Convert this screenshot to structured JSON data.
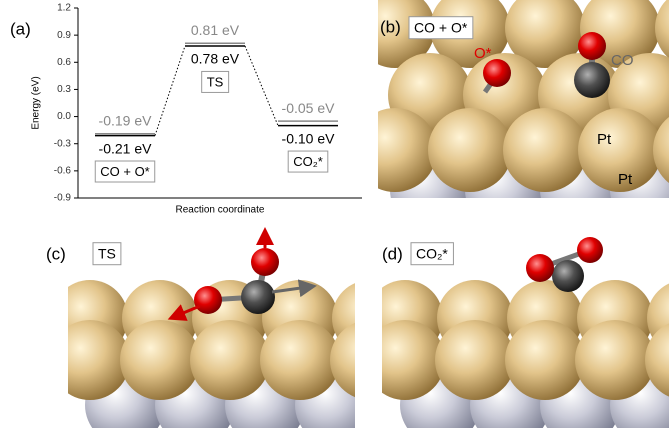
{
  "chart_data": {
    "type": "levels",
    "label": "(a)",
    "ylabel": "Energy (eV)",
    "xlabel": "Reaction coordinate",
    "categories": [
      "CO + O*",
      "TS",
      "CO₂*"
    ],
    "series": [
      {
        "color": "#888888",
        "values": [
          -0.19,
          0.81,
          -0.05
        ],
        "value_labels": [
          "-0.19 eV",
          "0.81 eV",
          "-0.05 eV"
        ]
      },
      {
        "color": "#000000",
        "values": [
          -0.21,
          0.78,
          -0.1
        ],
        "value_labels": [
          "-0.21 eV",
          "0.78 eV",
          "-0.10 eV"
        ]
      }
    ],
    "ylim": [
      -0.9,
      1.2
    ],
    "yticks": [
      -0.9,
      -0.6,
      -0.3,
      {
        "value": 0,
        "label": "0.0"
      },
      0.3,
      0.6,
      0.9,
      1.2
    ],
    "grid": false
  },
  "panels": [
    {
      "label": "(b)",
      "title": "CO + O*",
      "annotations": [
        "O*",
        "CO",
        "Pt",
        "Pt"
      ]
    },
    {
      "label": "(c)",
      "title": "TS"
    },
    {
      "label": "(d)",
      "title": "CO₂*"
    }
  ]
}
